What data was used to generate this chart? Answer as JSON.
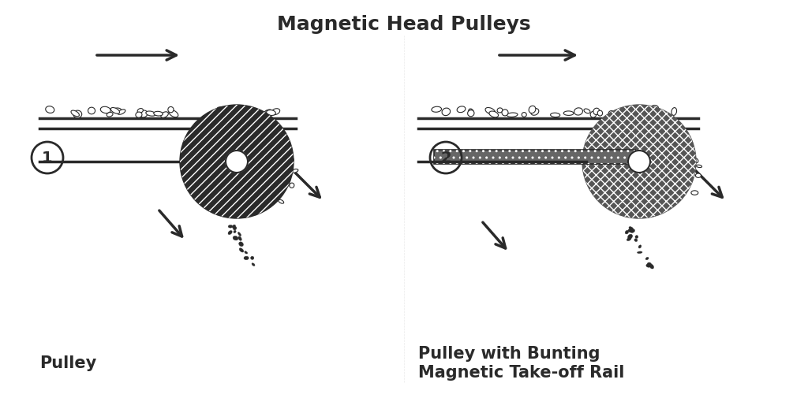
{
  "title": "Magnetic Head Pulleys",
  "label1": "Pulley",
  "label2": "Pulley with Bunting\nMagnetic Take-off Rail",
  "num1": "1",
  "num2": "2",
  "bg_color": "#ffffff",
  "dark_color": "#2a2a2a",
  "mid_color": "#555555",
  "light_color": "#aaaaaa"
}
